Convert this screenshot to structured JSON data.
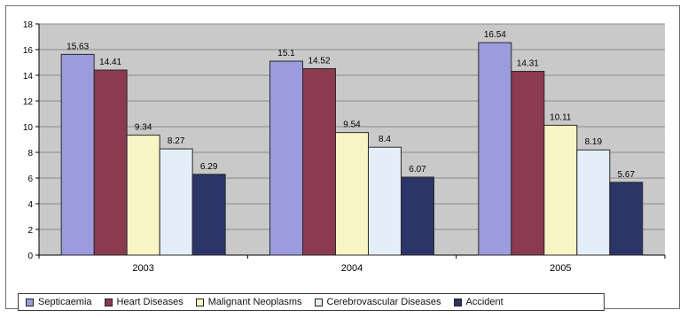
{
  "chart_data": {
    "type": "bar",
    "categories": [
      "2003",
      "2004",
      "2005"
    ],
    "series": [
      {
        "name": "Septicaemia",
        "values": [
          15.63,
          15.1,
          16.54
        ],
        "color": "#9b9bde"
      },
      {
        "name": "Heart Diseases",
        "values": [
          14.41,
          14.52,
          14.31
        ],
        "color": "#8b3a4f"
      },
      {
        "name": "Malignant Neoplasms",
        "values": [
          9.34,
          9.54,
          10.11
        ],
        "color": "#f8f4c4"
      },
      {
        "name": "Cerebrovascular Diseases",
        "values": [
          8.27,
          8.4,
          8.19
        ],
        "color": "#e4eef8"
      },
      {
        "name": "Accident",
        "values": [
          6.29,
          6.07,
          5.67
        ],
        "color": "#2c3567"
      }
    ],
    "data_labels": [
      [
        "15.63",
        "14.41",
        "9.34",
        "8.27",
        "6.29"
      ],
      [
        "15.1",
        "14.52",
        "9.54",
        "8.4",
        "6.07"
      ],
      [
        "16.54",
        "14.31",
        "10.11",
        "8.19",
        "5.67"
      ]
    ],
    "ylim": [
      0,
      18
    ],
    "yticks": [
      0,
      2,
      4,
      6,
      8,
      10,
      12,
      14,
      16,
      18
    ],
    "grid": true,
    "plot_background": "#c9c9c9",
    "legend_position": "bottom"
  }
}
